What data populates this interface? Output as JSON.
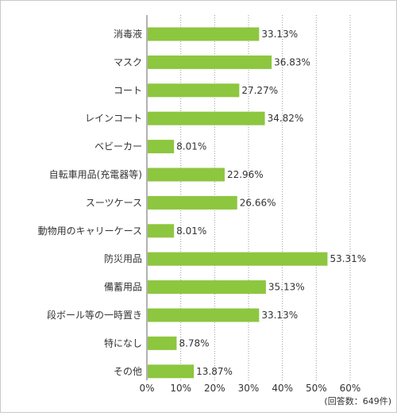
{
  "chart_data": {
    "type": "bar",
    "orientation": "horizontal",
    "categories": [
      "消毒液",
      "マスク",
      "コート",
      "レインコート",
      "ベビーカー",
      "自転車用品(充電器等)",
      "スーツケース",
      "動物用のキャリーケース",
      "防災用品",
      "備蓄用品",
      "段ボール等の一時置き",
      "特になし",
      "その他"
    ],
    "values": [
      33.13,
      36.83,
      27.27,
      34.82,
      8.01,
      22.96,
      26.66,
      8.01,
      53.31,
      35.13,
      33.13,
      8.78,
      13.87
    ],
    "value_labels": [
      "33.13%",
      "36.83%",
      "27.27%",
      "34.82%",
      "8.01%",
      "22.96%",
      "26.66%",
      "8.01%",
      "53.31%",
      "35.13%",
      "33.13%",
      "8.78%",
      "13.87%"
    ],
    "x_ticks": [
      "0%",
      "10%",
      "20%",
      "30%",
      "40%",
      "50%",
      "60%"
    ],
    "xlim": [
      0,
      60
    ],
    "grid": "vertical dotted",
    "bar_color": "#8dc63f",
    "note": "(回答数：649件)"
  }
}
